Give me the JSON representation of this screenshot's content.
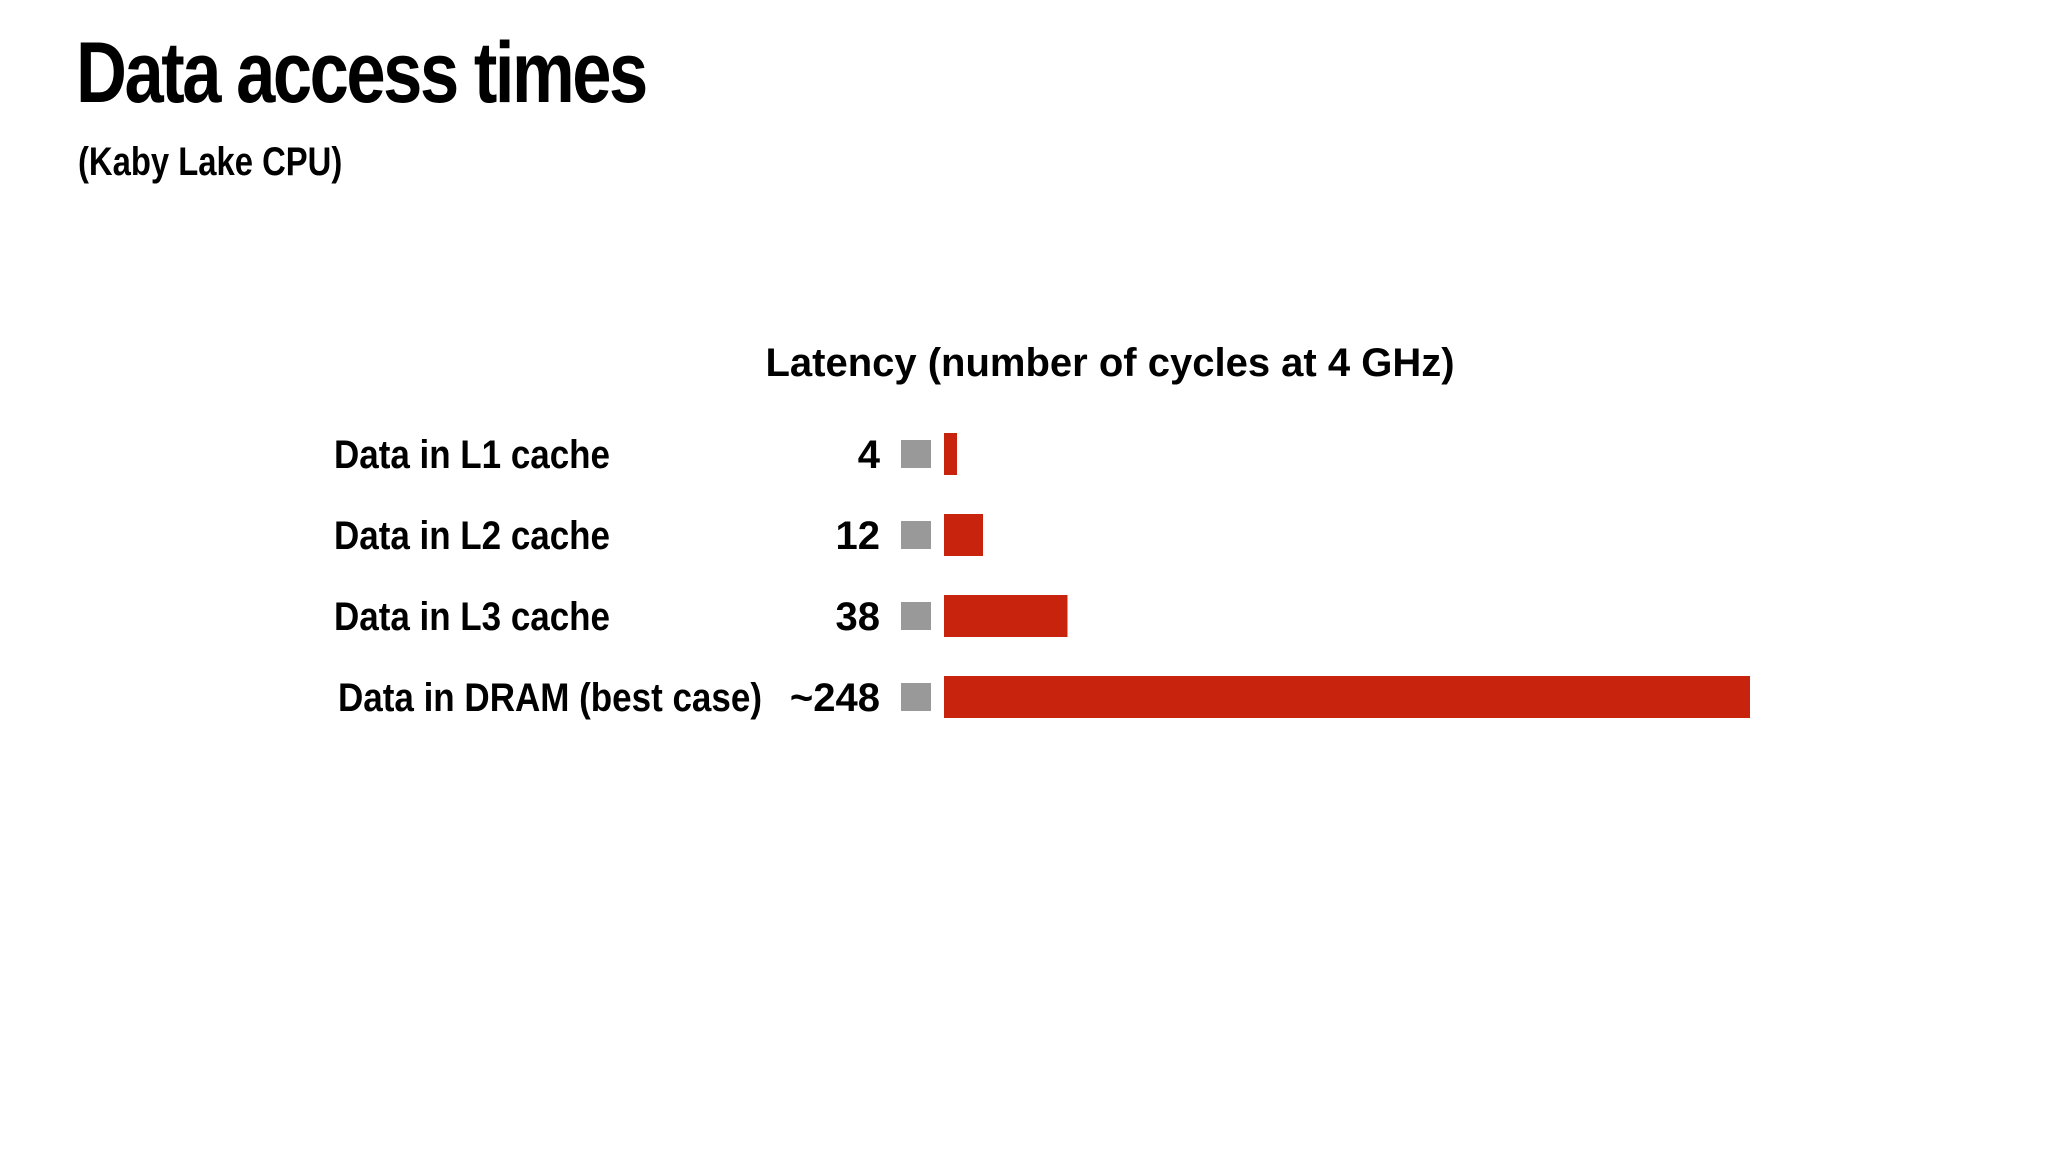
{
  "slide": {
    "title": "Data access times",
    "subtitle": "(Kaby Lake CPU)"
  },
  "chart_data": {
    "type": "bar",
    "orientation": "horizontal",
    "title": "Latency (number of cycles at 4 GHz)",
    "categories": [
      "Data in L1 cache",
      "Data in L2 cache",
      "Data in L3 cache",
      "Data in DRAM (best case)"
    ],
    "value_labels": [
      "4",
      "12",
      "38",
      "~248"
    ],
    "values": [
      4,
      12,
      38,
      248
    ],
    "xlim": [
      0,
      248
    ],
    "grid": false,
    "legend": "none",
    "colors": {
      "bar": "#c8230c",
      "marker": "#999999"
    }
  }
}
